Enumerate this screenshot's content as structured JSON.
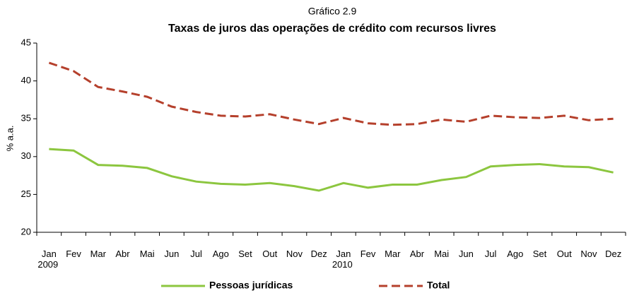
{
  "chart_data": {
    "type": "line",
    "supertitle": "Gráfico 2.9",
    "title": "Taxas de juros das operações de crédito com recursos livres",
    "y_label": "% a.a.",
    "categories": [
      "Jan 2009",
      "Fev",
      "Mar",
      "Abr",
      "Mai",
      "Jun",
      "Jul",
      "Ago",
      "Set",
      "Out",
      "Nov",
      "Dez",
      "Jan 2010",
      "Fev",
      "Mar",
      "Abr",
      "Mai",
      "Jun",
      "Jul",
      "Ago",
      "Set",
      "Out",
      "Nov",
      "Dez"
    ],
    "series": [
      {
        "name": "Pessoas jurídicas",
        "color": "#8cc63f",
        "dash": false,
        "values": [
          31.0,
          30.8,
          28.9,
          28.8,
          28.5,
          27.4,
          26.7,
          26.4,
          26.3,
          26.5,
          26.1,
          25.5,
          26.5,
          25.9,
          26.3,
          26.3,
          26.9,
          27.3,
          28.7,
          28.9,
          29.0,
          28.7,
          28.6,
          27.9
        ]
      },
      {
        "name": "Total",
        "color": "#b5402c",
        "dash": true,
        "values": [
          42.4,
          41.3,
          39.2,
          38.6,
          37.9,
          36.6,
          35.9,
          35.4,
          35.3,
          35.6,
          34.9,
          34.3,
          35.1,
          34.4,
          34.2,
          34.3,
          34.9,
          34.6,
          35.4,
          35.2,
          35.1,
          35.4,
          34.8,
          35.0
        ]
      }
    ],
    "ylim": [
      20,
      45
    ],
    "yticks": [
      20,
      25,
      30,
      35,
      40,
      45
    ],
    "grid": false,
    "legend": "bottom"
  }
}
